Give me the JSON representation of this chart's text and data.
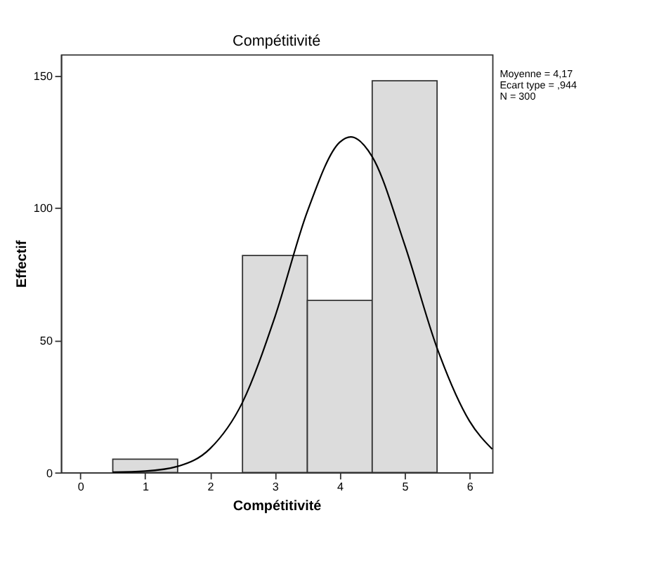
{
  "chart_data": {
    "type": "histogram",
    "title": "Compétitivité",
    "xlabel": "Compétitivité",
    "ylabel": "Effectif",
    "bins": [
      0.5,
      1.5,
      2.5,
      3.5,
      4.5,
      5.5
    ],
    "values": [
      5,
      0,
      82,
      65,
      148
    ],
    "color": "#dcdcdc",
    "series": [
      {
        "type": "line",
        "color": "#000000",
        "x": [
          0.5,
          1,
          1.5,
          2,
          2.5,
          3,
          3.5,
          4,
          4.17,
          4.5,
          5,
          5.5,
          6,
          6.35
        ],
        "values": [
          0.1,
          0.5,
          2.3,
          9,
          26.5,
          58.8,
          98.6,
          124.8,
          126.8,
          119.3,
          86.1,
          47,
          19.4,
          8.8
        ]
      }
    ],
    "xlim": [
      -0.3,
      6.35
    ],
    "xticks": [
      0,
      1,
      2,
      3,
      4,
      5,
      6
    ],
    "ylim": [
      0,
      158
    ],
    "yticks": [
      0,
      50,
      100,
      150
    ],
    "grid": false,
    "annotations": [
      "Moyenne = 4,17",
      "Ecart type = ,944",
      "N = 300"
    ]
  }
}
